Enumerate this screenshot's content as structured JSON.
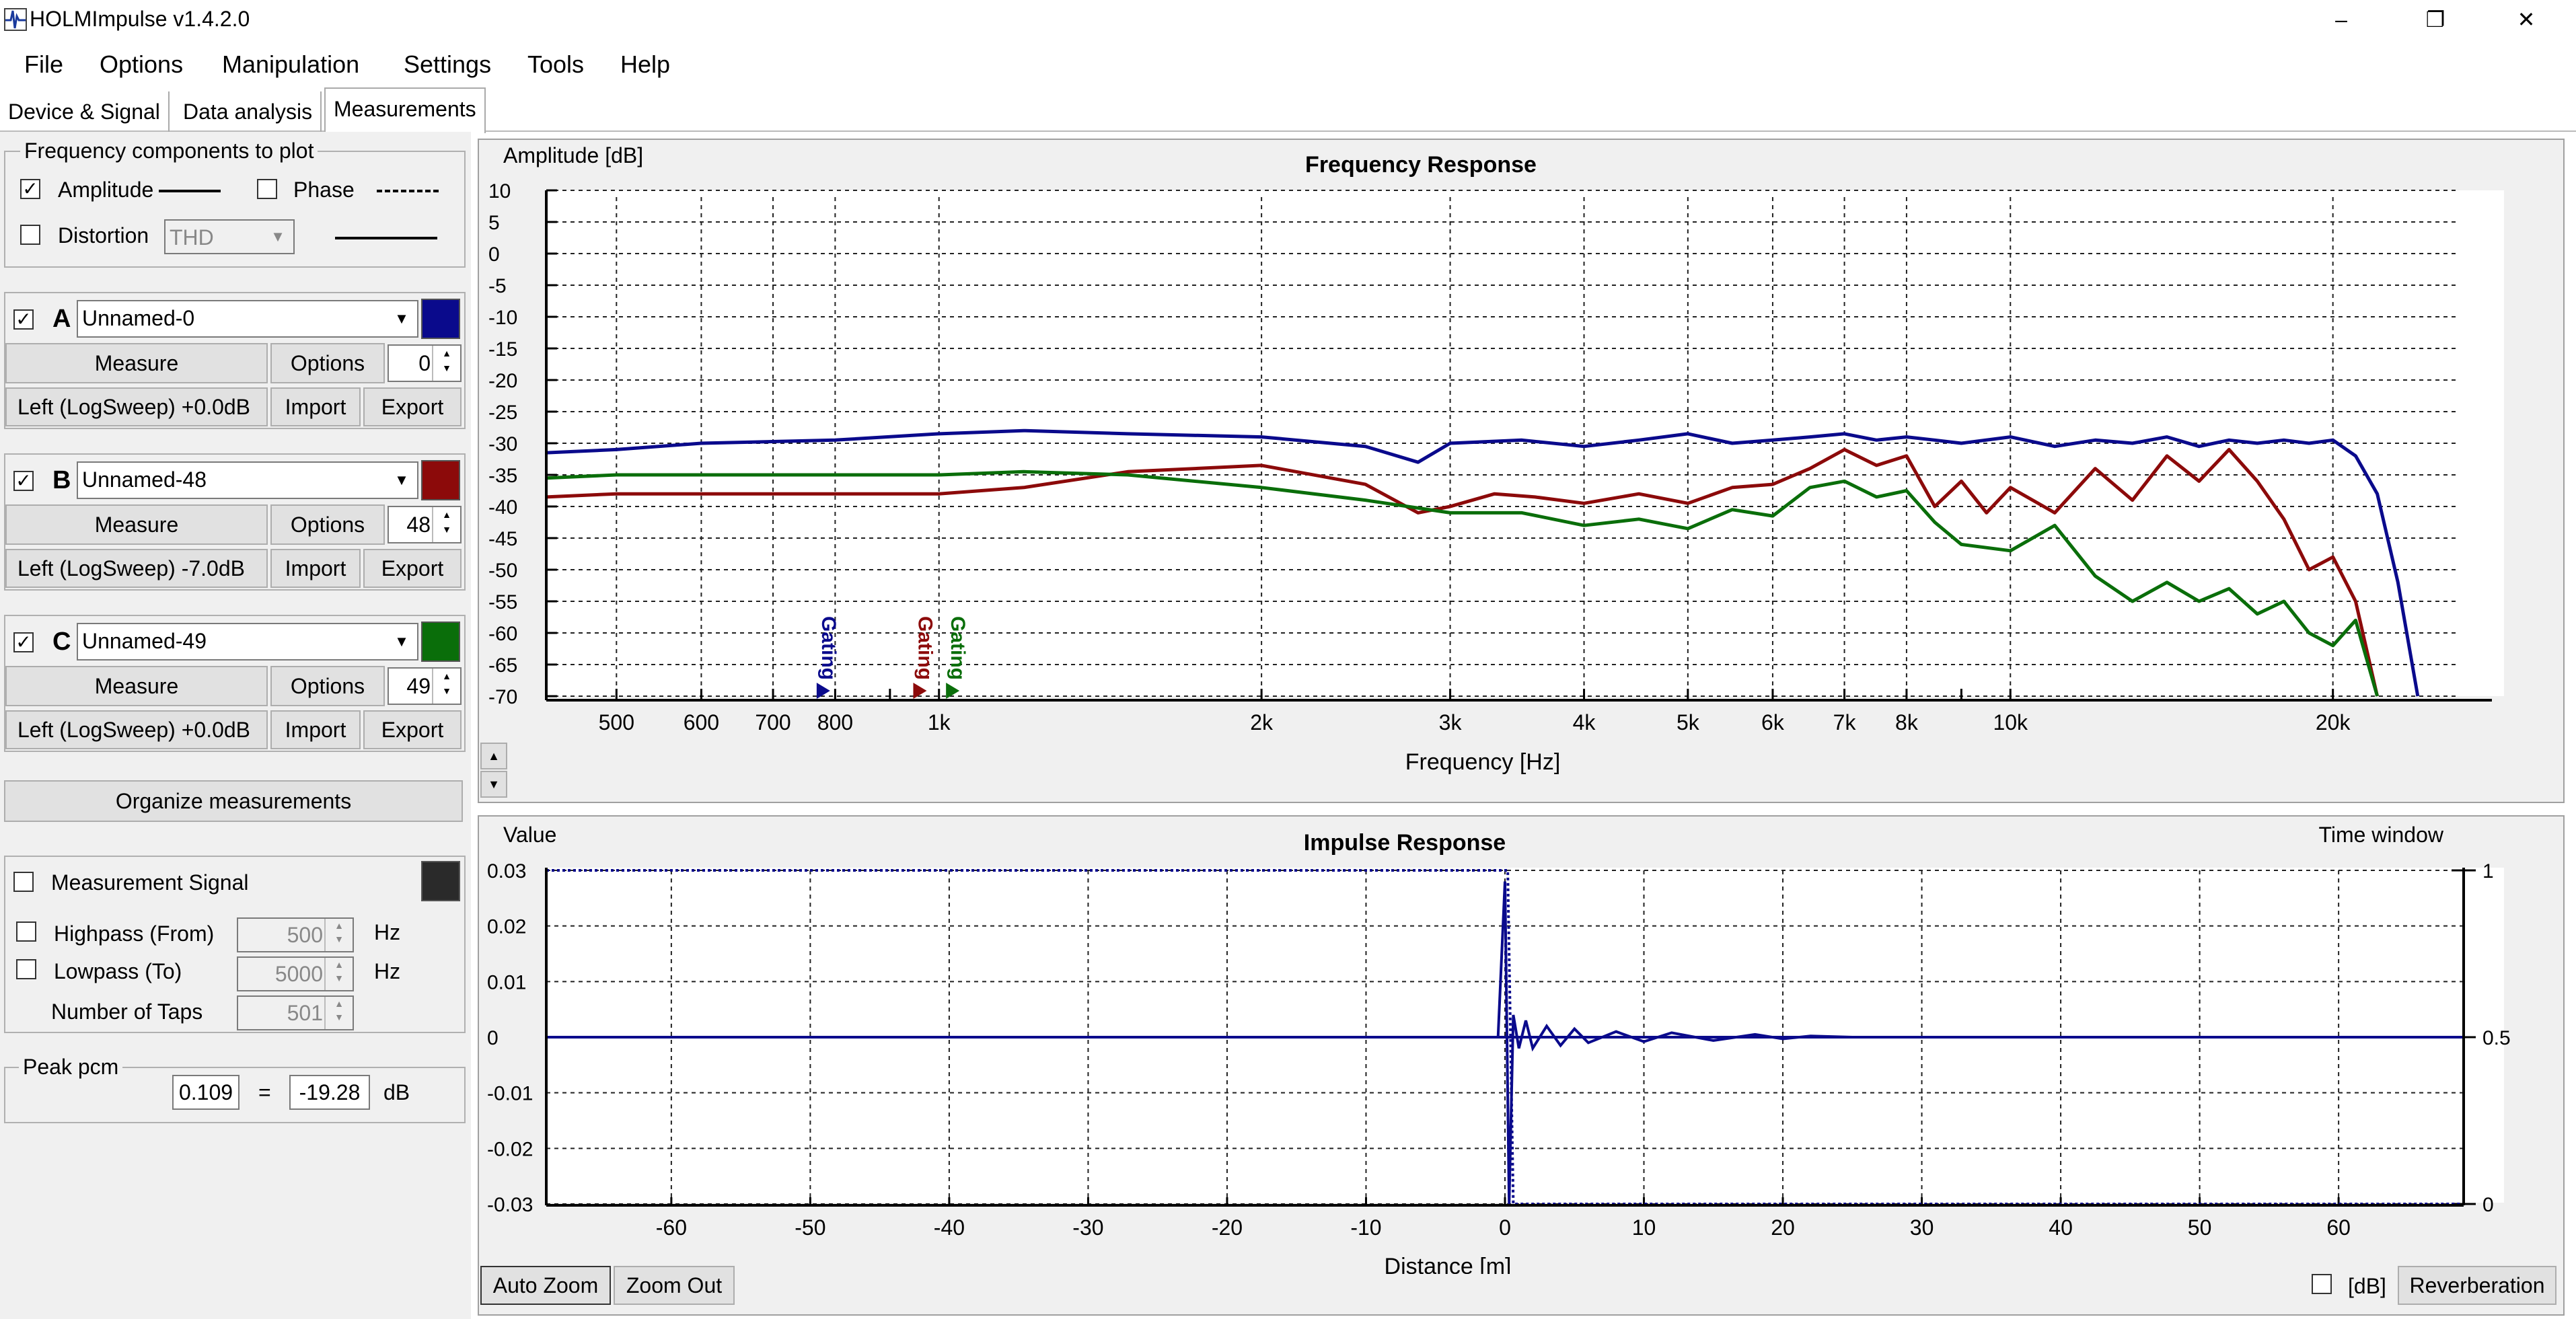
{
  "window": {
    "title": "HOLMImpulse  v1.4.2.0",
    "controls": [
      "–",
      "❐",
      "✕"
    ]
  },
  "menu": [
    "File",
    "Options",
    "Manipulation",
    "Settings",
    "Tools",
    "Help"
  ],
  "tabs": [
    {
      "label": "Device & Signal",
      "active": false
    },
    {
      "label": "Data analysis",
      "active": false
    },
    {
      "label": "Measurements",
      "active": true
    }
  ],
  "freq_components": {
    "title": "Frequency components to plot",
    "amplitude": {
      "label": "Amplitude",
      "checked": true
    },
    "phase": {
      "label": "Phase",
      "checked": false
    },
    "distortion": {
      "label": "Distortion",
      "checked": false,
      "select": "THD"
    }
  },
  "measurements": [
    {
      "letter": "A",
      "checked": true,
      "name": "Unnamed-0",
      "color": "#0a0a8c",
      "measure": "Measure",
      "options": "Options",
      "spin": "0",
      "info": "Left (LogSweep) +0.0dB",
      "import": "Import",
      "export": "Export"
    },
    {
      "letter": "B",
      "checked": true,
      "name": "Unnamed-48",
      "color": "#8c0a0a",
      "measure": "Measure",
      "options": "Options",
      "spin": "48",
      "info": "Left (LogSweep) -7.0dB",
      "import": "Import",
      "export": "Export"
    },
    {
      "letter": "C",
      "checked": true,
      "name": "Unnamed-49",
      "color": "#0a6e0a",
      "measure": "Measure",
      "options": "Options",
      "spin": "49",
      "info": "Left (LogSweep) +0.0dB",
      "import": "Import",
      "export": "Export"
    }
  ],
  "organize_button": "Organize measurements",
  "measurement_signal": {
    "label": "Measurement Signal",
    "checked": false,
    "color": "#2a2a2a",
    "highpass": {
      "label": "Highpass (From)",
      "value": "500",
      "unit": "Hz",
      "checked": false
    },
    "lowpass": {
      "label": "Lowpass (To)",
      "value": "5000",
      "unit": "Hz",
      "checked": false
    },
    "taps": {
      "label": "Number of Taps",
      "value": "501"
    }
  },
  "peak": {
    "title": "Peak pcm",
    "value": "0.109",
    "equals": "=",
    "db": "-19.28",
    "unit": "dB"
  },
  "freq_plot": {
    "title": "Frequency Response",
    "ylabel": "Amplitude [dB]",
    "xlabel": "Frequency [Hz]",
    "yticks": [
      "10",
      "5",
      "0",
      "-5",
      "-10",
      "-15",
      "-20",
      "-25",
      "-30",
      "-35",
      "-40",
      "-45",
      "-50",
      "-55",
      "-60",
      "-65",
      "-70"
    ],
    "xticks": [
      "500",
      "600",
      "700",
      "800",
      "1k",
      "2k",
      "3k",
      "4k",
      "5k",
      "6k",
      "7k",
      "8k",
      "10k",
      "20k"
    ],
    "gating_label": "Gating"
  },
  "impulse_plot": {
    "title": "Impulse Response",
    "ylabel": "Value",
    "right_label": "Time window",
    "xlabel": "Distance [m]",
    "yticks": [
      "0.03",
      "0.02",
      "0.01",
      "0",
      "-0.01",
      "-0.02",
      "-0.03"
    ],
    "right_ticks": [
      "1",
      "0.5",
      "0"
    ],
    "xticks": [
      "-60",
      "-50",
      "-40",
      "-30",
      "-20",
      "-10",
      "0",
      "10",
      "20",
      "30",
      "40",
      "50",
      "60"
    ]
  },
  "bottom": {
    "auto_zoom": "Auto Zoom",
    "zoom_out": "Zoom Out",
    "db_label": "[dB]",
    "db_checked": false,
    "reverb": "Reverberation"
  },
  "chart_data": [
    {
      "type": "line",
      "title": "Frequency Response",
      "xlabel": "Frequency [Hz]",
      "ylabel": "Amplitude [dB]",
      "xscale": "log",
      "xlim": [
        430,
        25000
      ],
      "ylim": [
        -70,
        10
      ],
      "grid": true,
      "series": [
        {
          "name": "A",
          "color": "#0a0a8c",
          "x": [
            430,
            500,
            600,
            800,
            1000,
            1200,
            1500,
            2000,
            2500,
            2800,
            3000,
            3500,
            4000,
            4500,
            5000,
            5500,
            6000,
            6500,
            7000,
            7500,
            8000,
            8500,
            9000,
            10000,
            11000,
            12000,
            13000,
            14000,
            15000,
            16000,
            17000,
            18000,
            19000,
            20000,
            21000,
            22000,
            23000,
            24000
          ],
          "y": [
            -31.5,
            -31,
            -30,
            -29.5,
            -28.5,
            -28,
            -28.5,
            -29,
            -30.5,
            -33,
            -30,
            -29.5,
            -30.5,
            -29.5,
            -28.5,
            -30,
            -29.5,
            -29,
            -28.5,
            -29.5,
            -29,
            -29.5,
            -30,
            -29,
            -30.5,
            -29.5,
            -30,
            -29,
            -30.5,
            -29.5,
            -30,
            -29.5,
            -30,
            -29.5,
            -32,
            -38,
            -52,
            -70
          ]
        },
        {
          "name": "B",
          "color": "#8c0a0a",
          "x": [
            430,
            500,
            600,
            800,
            1000,
            1200,
            1500,
            2000,
            2500,
            2800,
            3000,
            3300,
            3600,
            4000,
            4500,
            5000,
            5500,
            6000,
            6500,
            7000,
            7500,
            8000,
            8500,
            9000,
            9500,
            10000,
            11000,
            12000,
            13000,
            14000,
            15000,
            16000,
            17000,
            18000,
            19000,
            20000,
            21000,
            22000
          ],
          "y": [
            -38.5,
            -38,
            -38,
            -38,
            -38,
            -37,
            -34.5,
            -33.5,
            -36.5,
            -41,
            -40,
            -38,
            -38.5,
            -39.5,
            -38,
            -39.5,
            -37,
            -36.5,
            -34,
            -31,
            -33.5,
            -32,
            -40,
            -36,
            -41,
            -37,
            -41,
            -34,
            -39,
            -32,
            -36,
            -31,
            -36,
            -42,
            -50,
            -48,
            -55,
            -70
          ]
        },
        {
          "name": "C",
          "color": "#0a6e0a",
          "x": [
            430,
            500,
            600,
            800,
            1000,
            1200,
            1500,
            2000,
            2500,
            3000,
            3500,
            4000,
            4500,
            5000,
            5500,
            6000,
            6500,
            7000,
            7500,
            8000,
            8500,
            9000,
            10000,
            11000,
            12000,
            13000,
            14000,
            15000,
            16000,
            17000,
            18000,
            19000,
            20000,
            21000,
            22000
          ],
          "y": [
            -35.5,
            -35,
            -35,
            -35,
            -35,
            -34.5,
            -35,
            -37,
            -39,
            -41,
            -41,
            -43,
            -42,
            -43.5,
            -40.5,
            -41.5,
            -37,
            -36,
            -38.5,
            -37.5,
            -42.5,
            -46,
            -47,
            -43,
            -51,
            -55,
            -52,
            -55,
            -53,
            -57,
            -55,
            -60,
            -62,
            -58,
            -70
          ]
        }
      ],
      "gating_markers": [
        {
          "series": "A",
          "x": 780
        },
        {
          "series": "B",
          "x": 960
        },
        {
          "series": "C",
          "x": 1030
        }
      ]
    },
    {
      "type": "line",
      "title": "Impulse Response",
      "xlabel": "Distance [m]",
      "ylabel": "Value",
      "xlim": [
        -69,
        69
      ],
      "ylim": [
        -0.03,
        0.03
      ],
      "right_axis": {
        "label": "Time window",
        "ticks": [
          0,
          0.5,
          1
        ]
      },
      "grid": true,
      "series": [
        {
          "name": "A",
          "color": "#0a0a8c",
          "x": [
            -69,
            -1,
            -0.5,
            0,
            0.3,
            0.6,
            1,
            1.5,
            2,
            3,
            4,
            5,
            6,
            8,
            10,
            12,
            15,
            18,
            20,
            22,
            25,
            30,
            69
          ],
          "y": [
            0,
            0,
            0,
            0.028,
            -0.03,
            0.004,
            -0.002,
            0.003,
            -0.002,
            0.002,
            -0.0015,
            0.0015,
            -0.001,
            0.001,
            -0.0008,
            0.0008,
            -0.0006,
            0.0005,
            -0.0003,
            0.0002,
            0,
            0,
            0
          ]
        }
      ],
      "time_window": {
        "x": [
          -69,
          0.2,
          0.6,
          69
        ],
        "y": [
          1,
          1,
          0,
          0
        ]
      }
    }
  ]
}
